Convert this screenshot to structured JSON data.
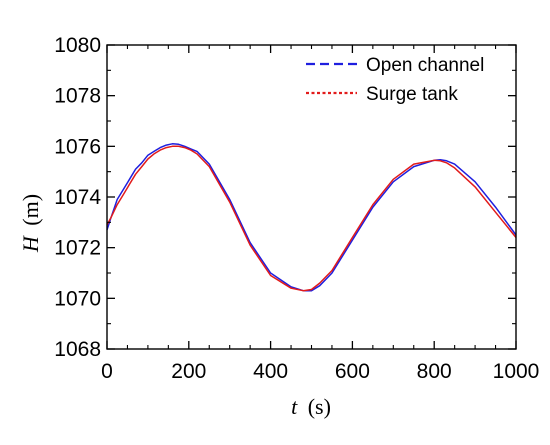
{
  "chart_data": {
    "type": "line",
    "xlabel": {
      "var": "t",
      "unit": "(s)"
    },
    "ylabel": {
      "var": "H",
      "unit": "(m)"
    },
    "xlim": [
      0,
      1000
    ],
    "ylim": [
      1068,
      1080
    ],
    "xticks": [
      0,
      200,
      400,
      600,
      800,
      1000
    ],
    "yticks": [
      1068,
      1070,
      1072,
      1074,
      1076,
      1078,
      1080
    ],
    "grid": false,
    "legend_position": "top-right",
    "series": [
      {
        "name": "Open channel",
        "color": "#1f1fdf",
        "style": "dashed",
        "x": [
          0,
          10,
          25,
          40,
          55,
          70,
          85,
          100,
          115,
          130,
          145,
          160,
          175,
          190,
          205,
          220,
          250,
          300,
          350,
          400,
          450,
          480,
          500,
          520,
          550,
          600,
          650,
          700,
          750,
          800,
          815,
          830,
          850,
          900,
          950,
          1000
        ],
        "y": [
          1072.7,
          1073.2,
          1073.9,
          1074.3,
          1074.7,
          1075.1,
          1075.35,
          1075.65,
          1075.8,
          1075.95,
          1076.05,
          1076.1,
          1076.08,
          1076.0,
          1075.9,
          1075.8,
          1075.3,
          1073.9,
          1072.2,
          1071.0,
          1070.45,
          1070.3,
          1070.3,
          1070.5,
          1071.0,
          1072.3,
          1073.6,
          1074.6,
          1075.2,
          1075.45,
          1075.47,
          1075.43,
          1075.3,
          1074.6,
          1073.6,
          1072.5
        ]
      },
      {
        "name": "Surge tank",
        "color": "#e21b1b",
        "style": "dotted",
        "x": [
          0,
          10,
          25,
          40,
          55,
          70,
          85,
          100,
          115,
          130,
          145,
          160,
          175,
          190,
          205,
          220,
          250,
          300,
          350,
          400,
          450,
          480,
          500,
          520,
          550,
          600,
          650,
          700,
          750,
          800,
          815,
          830,
          850,
          900,
          950,
          1000
        ],
        "y": [
          1072.9,
          1073.2,
          1073.7,
          1074.1,
          1074.5,
          1074.9,
          1075.2,
          1075.5,
          1075.7,
          1075.85,
          1075.95,
          1076.0,
          1076.0,
          1075.95,
          1075.85,
          1075.7,
          1075.2,
          1073.8,
          1072.1,
          1070.9,
          1070.4,
          1070.3,
          1070.35,
          1070.6,
          1071.1,
          1072.4,
          1073.7,
          1074.7,
          1075.3,
          1075.45,
          1075.43,
          1075.35,
          1075.15,
          1074.4,
          1073.4,
          1072.4
        ]
      }
    ]
  }
}
